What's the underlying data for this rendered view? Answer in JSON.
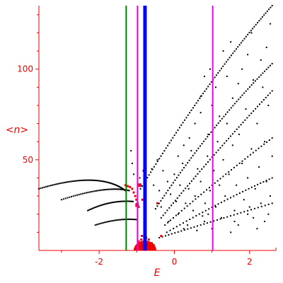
{
  "chart_data": {
    "type": "scatter",
    "title": "",
    "xlabel": "E",
    "ylabel": "<n>",
    "xlim": [
      -3.6,
      2.7
    ],
    "ylim": [
      0,
      135
    ],
    "xticks": [
      -2,
      0,
      2
    ],
    "yticks": [
      50,
      100
    ],
    "grid": false,
    "colors": {
      "axis": "#ee0000",
      "points": "#000000",
      "highlight": "#ee0000",
      "green_line": "#008000",
      "blue_line": "#0000ff",
      "magenta_line": "#ee00ee"
    },
    "vertical_lines": [
      {
        "x": -1.28,
        "color": "#008000",
        "width": "thin"
      },
      {
        "x": -0.98,
        "color": "#ee00ee",
        "width": "thin"
      },
      {
        "x": -0.78,
        "color": "#0000ff",
        "width": "thick"
      },
      {
        "x": 1.02,
        "color": "#ee00ee",
        "width": "thin"
      }
    ],
    "bands": [
      {
        "name": "b1",
        "x0": -3.6,
        "y0": 34,
        "x1": -2.0,
        "y1": 44,
        "x2": -1.3,
        "y2": 33,
        "n": 70
      },
      {
        "name": "b2",
        "x0": -3.0,
        "y0": 28,
        "x1": -1.8,
        "y1": 36,
        "x2": -1.2,
        "y2": 33,
        "n": 45
      },
      {
        "name": "b3",
        "x0": -2.3,
        "y0": 22,
        "x1": -1.7,
        "y1": 28,
        "x2": -1.1,
        "y2": 27,
        "n": 38
      },
      {
        "name": "b4",
        "x0": -2.1,
        "y0": 14,
        "x1": -1.5,
        "y1": 18,
        "x2": -1.0,
        "y2": 17,
        "n": 30
      },
      {
        "name": "d1",
        "x0": -0.9,
        "y0": 34,
        "x1": 0.9,
        "y1": 95,
        "x2": 2.6,
        "y2": 135,
        "n": 80
      },
      {
        "name": "d2",
        "x0": -0.5,
        "y0": 23,
        "x1": 1.0,
        "y1": 70,
        "x2": 2.6,
        "y2": 103,
        "n": 65
      },
      {
        "name": "d3",
        "x0": -0.35,
        "y0": 18,
        "x1": 1.1,
        "y1": 55,
        "x2": 2.6,
        "y2": 88,
        "n": 55
      },
      {
        "name": "d4",
        "x0": -0.25,
        "y0": 14,
        "x1": 1.2,
        "y1": 40,
        "x2": 2.6,
        "y2": 62,
        "n": 40
      },
      {
        "name": "d5",
        "x0": -0.2,
        "y0": 10,
        "x1": 1.3,
        "y1": 28,
        "x2": 2.6,
        "y2": 40,
        "n": 35
      },
      {
        "name": "d6",
        "x0": -0.4,
        "y0": 7,
        "x1": 1.0,
        "y1": 16,
        "x2": 2.6,
        "y2": 26,
        "n": 35
      }
    ],
    "scatter_points": [
      [
        -1.15,
        55
      ],
      [
        -1.12,
        48
      ],
      [
        -1.08,
        42
      ],
      [
        -0.92,
        40
      ],
      [
        -0.6,
        45
      ],
      [
        -0.55,
        36
      ],
      [
        -0.45,
        50
      ],
      [
        -0.4,
        33
      ],
      [
        -0.3,
        44
      ],
      [
        -0.18,
        38
      ],
      [
        -0.1,
        31
      ],
      [
        0.0,
        42
      ],
      [
        0.05,
        27
      ],
      [
        0.15,
        36
      ],
      [
        0.22,
        48
      ],
      [
        0.3,
        26
      ],
      [
        0.38,
        34
      ],
      [
        0.45,
        55
      ],
      [
        0.5,
        22
      ],
      [
        0.55,
        30
      ],
      [
        0.62,
        45
      ],
      [
        0.7,
        38
      ],
      [
        0.75,
        19
      ],
      [
        0.82,
        26
      ],
      [
        0.88,
        52
      ],
      [
        0.95,
        33
      ],
      [
        1.05,
        44
      ],
      [
        1.1,
        24
      ],
      [
        1.15,
        60
      ],
      [
        1.2,
        36
      ],
      [
        1.3,
        50
      ],
      [
        1.35,
        30
      ],
      [
        1.4,
        70
      ],
      [
        1.45,
        42
      ],
      [
        1.55,
        58
      ],
      [
        1.6,
        22
      ],
      [
        1.65,
        36
      ],
      [
        1.72,
        64
      ],
      [
        1.8,
        48
      ],
      [
        1.85,
        28
      ],
      [
        1.9,
        78
      ],
      [
        1.95,
        40
      ],
      [
        2.05,
        56
      ],
      [
        2.1,
        18
      ],
      [
        2.15,
        34
      ],
      [
        2.2,
        70
      ],
      [
        2.25,
        46
      ],
      [
        2.3,
        26
      ],
      [
        2.35,
        90
      ],
      [
        2.4,
        60
      ],
      [
        2.45,
        38
      ],
      [
        2.5,
        80
      ],
      [
        2.55,
        30
      ],
      [
        2.6,
        52
      ],
      [
        0.35,
        14
      ],
      [
        0.6,
        11
      ],
      [
        0.8,
        16
      ],
      [
        1.0,
        12
      ],
      [
        1.25,
        18
      ],
      [
        1.5,
        10
      ],
      [
        1.7,
        14
      ],
      [
        1.95,
        20
      ],
      [
        2.2,
        12
      ],
      [
        2.4,
        16
      ],
      [
        -0.15,
        16
      ],
      [
        0.1,
        20
      ],
      [
        -0.35,
        24
      ],
      [
        0.25,
        12
      ],
      [
        0.9,
        20
      ],
      [
        1.6,
        16
      ],
      [
        2.0,
        24
      ],
      [
        2.5,
        20
      ],
      [
        0.7,
        85
      ],
      [
        0.8,
        96
      ],
      [
        0.95,
        100
      ],
      [
        1.3,
        110
      ],
      [
        1.5,
        115
      ],
      [
        1.7,
        92
      ],
      [
        2.05,
        120
      ],
      [
        2.3,
        105
      ],
      [
        2.45,
        112
      ],
      [
        2.55,
        125
      ],
      [
        0.9,
        64
      ],
      [
        1.2,
        74
      ],
      [
        1.0,
        80
      ],
      [
        1.55,
        84
      ],
      [
        1.8,
        100
      ],
      [
        2.1,
        94
      ],
      [
        0.4,
        62
      ],
      [
        0.55,
        70
      ],
      [
        0.25,
        58
      ],
      [
        0.1,
        52
      ],
      [
        0.7,
        76
      ],
      [
        1.1,
        90
      ],
      [
        1.4,
        96
      ],
      [
        1.95,
        108
      ]
    ],
    "highlight_points": [
      [
        -1.3,
        36
      ],
      [
        -1.24,
        35.5
      ],
      [
        -1.18,
        35
      ],
      [
        -1.12,
        34
      ],
      [
        -1.08,
        32
      ],
      [
        -1.04,
        30
      ],
      [
        -1.01,
        28
      ],
      [
        -0.98,
        26
      ],
      [
        -0.95,
        24
      ],
      [
        -0.85,
        28
      ],
      [
        -0.82,
        44
      ],
      [
        -0.6,
        4
      ],
      [
        -0.55,
        3
      ],
      [
        -0.35,
        8
      ],
      [
        -0.45,
        26
      ],
      [
        -0.9,
        3
      ],
      [
        -0.88,
        6
      ],
      [
        -0.86,
        8
      ],
      [
        -0.8,
        5
      ],
      [
        -0.75,
        7
      ],
      [
        -0.7,
        4
      ],
      [
        -0.65,
        2
      ],
      [
        -0.95,
        5
      ],
      [
        -0.97,
        2
      ],
      [
        -0.68,
        6
      ],
      [
        -0.72,
        2
      ],
      [
        -0.78,
        3
      ],
      [
        -0.84,
        2
      ]
    ],
    "big_markers": [
      [
        -0.92,
        36
      ],
      [
        -0.99,
        25
      ]
    ]
  }
}
